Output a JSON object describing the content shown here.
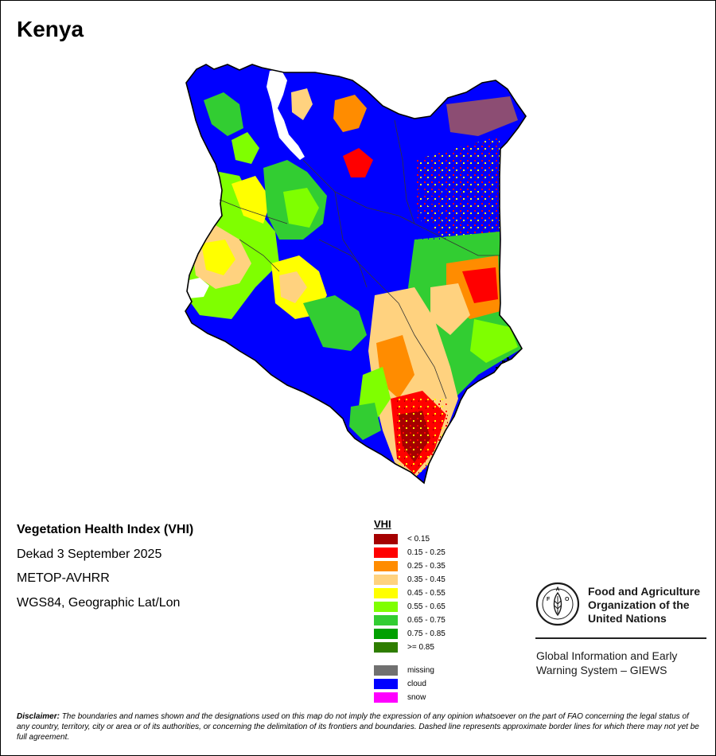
{
  "map": {
    "country": "Kenya"
  },
  "info": {
    "title": "Vegetation Health Index (VHI)",
    "lines": [
      "Dekad 3 September 2025",
      "METOP-AVHRR",
      "WGS84, Geographic Lat/Lon"
    ]
  },
  "legend": {
    "title": "VHI",
    "classes": [
      {
        "label": "< 0.15",
        "color": "#a50000"
      },
      {
        "label": "0.15 - 0.25",
        "color": "#ff0000"
      },
      {
        "label": "0.25 - 0.35",
        "color": "#ff8c00"
      },
      {
        "label": "0.35 - 0.45",
        "color": "#ffd27f"
      },
      {
        "label": "0.45 - 0.55",
        "color": "#ffff00"
      },
      {
        "label": "0.55 - 0.65",
        "color": "#7fff00"
      },
      {
        "label": "0.65 - 0.75",
        "color": "#32cd32"
      },
      {
        "label": "0.75 - 0.85",
        "color": "#00a000"
      },
      {
        "label": ">= 0.85",
        "color": "#2e7d00"
      }
    ],
    "extras": [
      {
        "label": "missing",
        "color": "#707070"
      },
      {
        "label": "cloud",
        "color": "#0000ff"
      },
      {
        "label": "snow",
        "color": "#ff00ff"
      }
    ]
  },
  "organization": {
    "name": "Food and Agriculture\nOrganization of the\nUnited Nations",
    "logo_text": "FAO",
    "logo_motto": "FIAT PANIS",
    "system": "Global Information and Early\nWarning System – GIEWS"
  },
  "disclaimer": {
    "lead": "Disclaimer:",
    "text": " The boundaries and names shown and the designations used on this map do not imply the expression of any opinion whatsoever on the part of FAO concerning the legal status of any country, territory, city or area or of its authorities, or concerning the delimitation of its frontiers and boundaries. Dashed line represents approximate border lines for which there may not yet be full agreement."
  }
}
